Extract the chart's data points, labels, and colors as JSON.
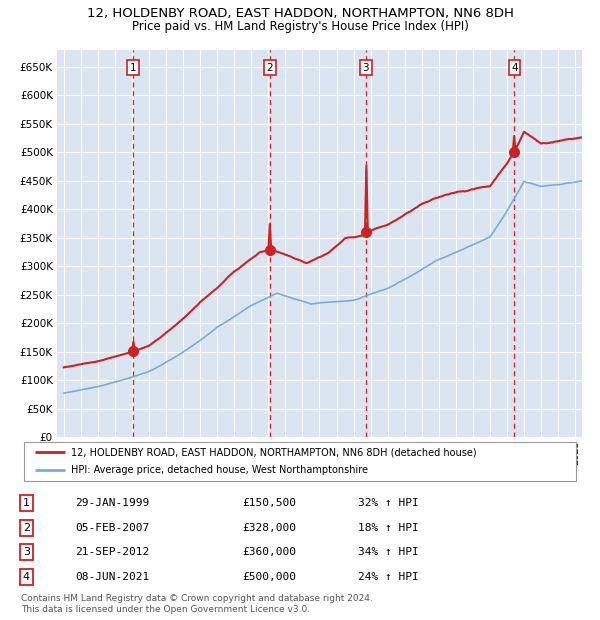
{
  "title": "12, HOLDENBY ROAD, EAST HADDON, NORTHAMPTON, NN6 8DH",
  "subtitle": "Price paid vs. HM Land Registry's House Price Index (HPI)",
  "background_color": "#dce6f0",
  "plot_bg_color": "#dbe5f1",
  "red_line_color": "#cc2222",
  "blue_line_color": "#7aadd4",
  "grid_color": "#ffffff",
  "vline_color": "#cc2222",
  "sale_points": [
    {
      "num": 1,
      "date_label": "29-JAN-1999",
      "price": 150500,
      "price_label": "£150,500",
      "pct": "32%",
      "dir": "↑",
      "x_year": 1999.08
    },
    {
      "num": 2,
      "date_label": "05-FEB-2007",
      "price": 328000,
      "price_label": "£328,000",
      "pct": "18%",
      "dir": "↑",
      "x_year": 2007.09
    },
    {
      "num": 3,
      "date_label": "21-SEP-2012",
      "price": 360000,
      "price_label": "£360,000",
      "pct": "34%",
      "dir": "↑",
      "x_year": 2012.72
    },
    {
      "num": 4,
      "date_label": "08-JUN-2021",
      "price": 500000,
      "price_label": "£500,000",
      "pct": "24%",
      "dir": "↑",
      "x_year": 2021.44
    }
  ],
  "legend_red": "12, HOLDENBY ROAD, EAST HADDON, NORTHAMPTON, NN6 8DH (detached house)",
  "legend_blue": "HPI: Average price, detached house, West Northamptonshire",
  "footer1": "Contains HM Land Registry data © Crown copyright and database right 2024.",
  "footer2": "This data is licensed under the Open Government Licence v3.0.",
  "ylim": [
    0,
    680000
  ],
  "yticks": [
    0,
    50000,
    100000,
    150000,
    200000,
    250000,
    300000,
    350000,
    400000,
    450000,
    500000,
    550000,
    600000,
    650000
  ],
  "xlim_start": 1994.6,
  "xlim_end": 2025.4
}
